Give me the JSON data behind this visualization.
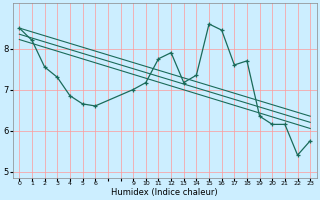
{
  "xlabel": "Humidex (Indice chaleur)",
  "bg_color": "#cceeff",
  "grid_color": "#ff9999",
  "line_color": "#1a6b5a",
  "x_hours": [
    0,
    1,
    2,
    3,
    4,
    5,
    6,
    9,
    10,
    11,
    12,
    13,
    14,
    15,
    16,
    17,
    18,
    19,
    20,
    21,
    22,
    23
  ],
  "humidex": [
    8.5,
    8.2,
    7.55,
    7.3,
    6.85,
    6.65,
    6.6,
    7.0,
    7.17,
    7.75,
    7.9,
    7.17,
    7.35,
    8.6,
    8.45,
    7.6,
    7.7,
    6.35,
    6.15,
    6.15,
    5.4,
    5.75
  ],
  "line1_start": 8.5,
  "line1_end": 6.35,
  "line2_start": 8.35,
  "line2_end": 6.2,
  "line3_start": 8.22,
  "line3_end": 6.05,
  "ylim": [
    4.85,
    9.1
  ],
  "yticks": [
    5,
    6,
    7,
    8
  ],
  "xlim": [
    -0.5,
    23.5
  ],
  "xtick_show": [
    0,
    1,
    2,
    3,
    4,
    5,
    6,
    9,
    10,
    11,
    12,
    13,
    14,
    15,
    16,
    17,
    18,
    19,
    20,
    21,
    22,
    23
  ]
}
